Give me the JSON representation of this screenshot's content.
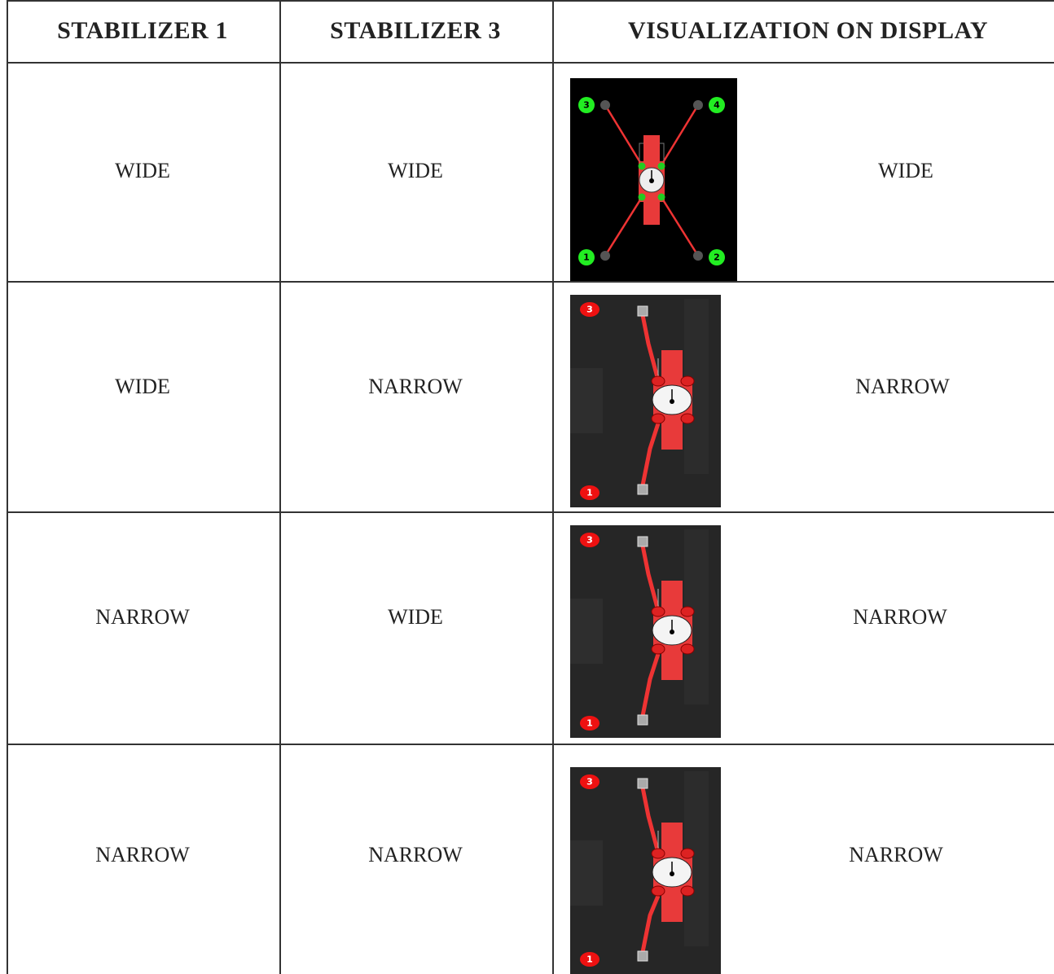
{
  "table": {
    "header": [
      "STABILIZER 1",
      "STABILIZER 3",
      "VISUALIZATION ON DISPLAY"
    ],
    "rows": [
      {
        "stabilizer_1": "WIDE",
        "stabilizer_3": "WIDE",
        "display": {
          "badges": [
            "3",
            "4",
            "1",
            "2"
          ],
          "label": "WIDE"
        }
      },
      {
        "stabilizer_1": "WIDE",
        "stabilizer_3": "NARROW",
        "display": {
          "badges": [
            "3",
            "1"
          ],
          "label": "NARROW"
        }
      },
      {
        "stabilizer_1": "NARROW",
        "stabilizer_3": "WIDE",
        "display": {
          "badges": [
            "3",
            "1"
          ],
          "label": "NARROW"
        }
      },
      {
        "stabilizer_1": "NARROW",
        "stabilizer_3": "NARROW",
        "display": {
          "badges": [
            "3",
            "1"
          ],
          "label": "NARROW"
        }
      }
    ]
  }
}
